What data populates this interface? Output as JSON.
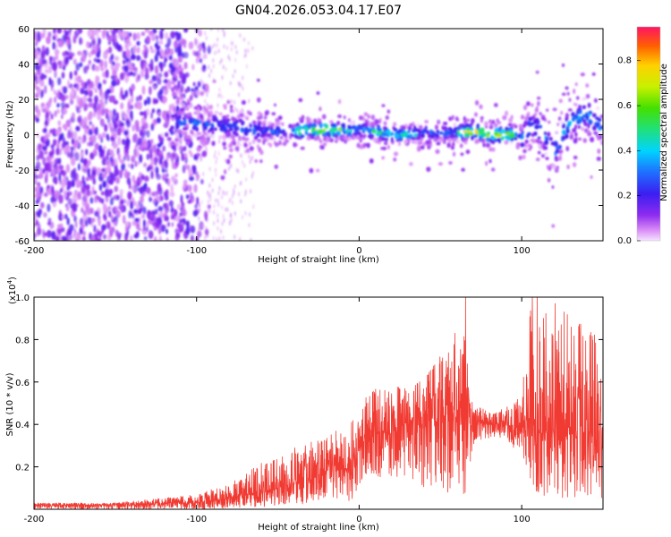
{
  "title": "GN04.2026.053.04.17.E07",
  "colors": {
    "snr_line": "#f03a32",
    "background": "#ffffff",
    "axis": "#000000"
  },
  "chart_data": [
    {
      "type": "heatmap",
      "name": "spectrogram",
      "xlabel": "Height of straight line (km)",
      "ylabel": "Frequency (Hz)",
      "xlim": [
        -200,
        150
      ],
      "ylim": [
        -60,
        60
      ],
      "xticks": [
        -200,
        -100,
        0,
        100
      ],
      "yticks": [
        -60,
        -40,
        -20,
        0,
        20,
        40,
        60
      ],
      "colorbar": {
        "label": "Normalized spectral amplitude",
        "range": [
          0,
          0.95
        ],
        "ticks": [
          "0.0",
          "0.2",
          "0.4",
          "0.6",
          "0.8"
        ],
        "tick_values": [
          0,
          0.2,
          0.4,
          0.6,
          0.8
        ]
      },
      "features": {
        "noise_region_km": [
          -200,
          -100
        ],
        "signal_start_km": -115,
        "ridge_center_hz": [
          [
            -115,
            7
          ],
          [
            -90,
            6
          ],
          [
            -60,
            2
          ],
          [
            -40,
            2
          ],
          [
            -20,
            3
          ],
          [
            -5,
            2
          ],
          [
            0,
            3
          ],
          [
            20,
            0
          ],
          [
            40,
            1
          ],
          [
            60,
            1
          ],
          [
            70,
            2
          ],
          [
            80,
            0
          ],
          [
            95,
            0
          ],
          [
            100,
            -3
          ],
          [
            105,
            5
          ],
          [
            110,
            3
          ],
          [
            115,
            -2
          ],
          [
            120,
            -10
          ],
          [
            130,
            8
          ],
          [
            140,
            12
          ],
          [
            150,
            3
          ]
        ]
      }
    },
    {
      "type": "line",
      "name": "snr",
      "xlabel": "Height of straight line (km)",
      "ylabel": "SNR (10 * v/v)",
      "scale_note": "(x10",
      "scale_exp": "4",
      "xlim": [
        -200,
        150
      ],
      "ylim": [
        0,
        1.0
      ],
      "xticks": [
        -200,
        -100,
        0,
        100
      ],
      "yticks": [
        0.2,
        0.4,
        0.6,
        0.8,
        1.0
      ],
      "envelope": [
        {
          "x": -200,
          "lo": 0.0,
          "mid": 0.02,
          "hi": 0.03
        },
        {
          "x": -150,
          "lo": 0.0,
          "mid": 0.02,
          "hi": 0.03
        },
        {
          "x": -100,
          "lo": 0.0,
          "mid": 0.03,
          "hi": 0.07
        },
        {
          "x": -80,
          "lo": 0.005,
          "mid": 0.05,
          "hi": 0.12
        },
        {
          "x": -60,
          "lo": 0.01,
          "mid": 0.08,
          "hi": 0.22
        },
        {
          "x": -40,
          "lo": 0.01,
          "mid": 0.12,
          "hi": 0.3
        },
        {
          "x": -20,
          "lo": 0.02,
          "mid": 0.17,
          "hi": 0.34
        },
        {
          "x": -5,
          "lo": 0.03,
          "mid": 0.2,
          "hi": 0.42
        },
        {
          "x": 0,
          "lo": 0.1,
          "mid": 0.28,
          "hi": 0.42
        },
        {
          "x": 5,
          "lo": 0.15,
          "mid": 0.35,
          "hi": 0.58
        },
        {
          "x": 20,
          "lo": 0.15,
          "mid": 0.38,
          "hi": 0.58
        },
        {
          "x": 40,
          "lo": 0.1,
          "mid": 0.42,
          "hi": 0.62
        },
        {
          "x": 60,
          "lo": 0.05,
          "mid": 0.45,
          "hi": 0.85
        },
        {
          "x": 65,
          "lo": 0.03,
          "mid": 0.4,
          "hi": 0.9
        },
        {
          "x": 70,
          "lo": 0.3,
          "mid": 0.42,
          "hi": 0.5
        },
        {
          "x": 80,
          "lo": 0.33,
          "mid": 0.4,
          "hi": 0.46
        },
        {
          "x": 90,
          "lo": 0.33,
          "mid": 0.4,
          "hi": 0.48
        },
        {
          "x": 100,
          "lo": 0.25,
          "mid": 0.38,
          "hi": 0.55
        },
        {
          "x": 105,
          "lo": 0.15,
          "mid": 0.45,
          "hi": 0.98
        },
        {
          "x": 110,
          "lo": 0.05,
          "mid": 0.35,
          "hi": 0.9
        },
        {
          "x": 120,
          "lo": 0.05,
          "mid": 0.38,
          "hi": 0.95
        },
        {
          "x": 130,
          "lo": 0.05,
          "mid": 0.38,
          "hi": 0.92
        },
        {
          "x": 140,
          "lo": 0.05,
          "mid": 0.35,
          "hi": 0.85
        },
        {
          "x": 150,
          "lo": 0.05,
          "mid": 0.32,
          "hi": 0.8
        }
      ],
      "spikes": [
        {
          "x": 65.5,
          "y": 1.0
        },
        {
          "x": 106.5,
          "y": 1.0
        },
        {
          "x": 109.5,
          "y": 1.0
        },
        {
          "x": 120.5,
          "y": 0.97
        },
        {
          "x": 126,
          "y": 0.93
        }
      ]
    }
  ]
}
